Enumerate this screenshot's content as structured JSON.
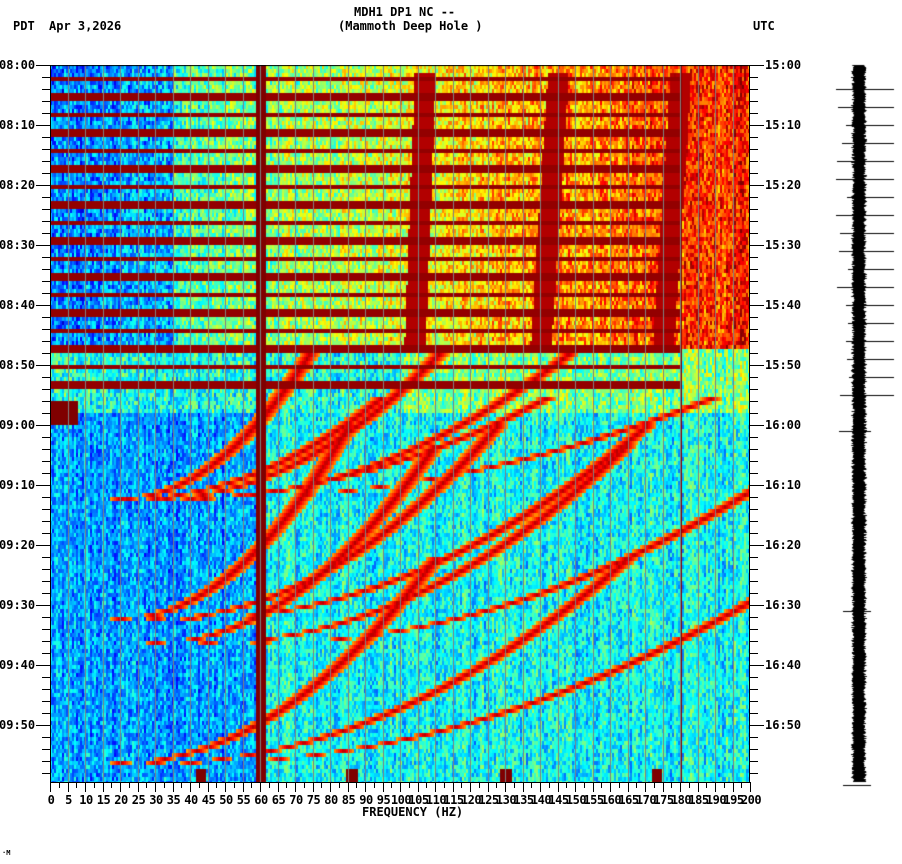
{
  "header": {
    "station_line": "MDH1 DP1 NC --",
    "station_name": "(Mammoth Deep Hole )",
    "left_tz": "PDT",
    "date": "Apr 3,2026",
    "right_tz": "UTC"
  },
  "footer_mark": "·M",
  "chart_data": {
    "type": "heatmap",
    "title": "MDH1 DP1 NC -- (Mammoth Deep Hole ) spectrogram",
    "xlabel": "FREQUENCY (HZ)",
    "ylabel_left": "PDT",
    "ylabel_right": "UTC",
    "xlim": [
      0,
      200
    ],
    "x_ticks": [
      0,
      5,
      10,
      15,
      20,
      25,
      30,
      35,
      40,
      45,
      50,
      55,
      60,
      65,
      70,
      75,
      80,
      85,
      90,
      95,
      100,
      105,
      110,
      115,
      120,
      125,
      130,
      135,
      140,
      145,
      150,
      155,
      160,
      165,
      170,
      175,
      180,
      185,
      190,
      195,
      200
    ],
    "x_tick_labels": [
      "0",
      "5",
      "10",
      "15",
      "20",
      "25",
      "30",
      "35",
      "40",
      "45",
      "50",
      "55",
      "60",
      "65",
      "70",
      "75",
      "80",
      "85",
      "90",
      "95",
      "100",
      "105",
      "110",
      "115",
      "120",
      "125",
      "130",
      "135",
      "140",
      "145",
      "150",
      "155",
      "160",
      "165",
      "170",
      "175",
      "180",
      "185",
      "190",
      "195",
      "200"
    ],
    "y_ticks_left": [
      "08:00",
      "08:10",
      "08:20",
      "08:30",
      "08:40",
      "08:50",
      "09:00",
      "09:10",
      "09:20",
      "09:30",
      "09:40",
      "09:50"
    ],
    "y_ticks_right": [
      "15:00",
      "15:10",
      "15:20",
      "15:30",
      "15:40",
      "15:50",
      "16:00",
      "16:10",
      "16:20",
      "16:30",
      "16:40",
      "16:50"
    ],
    "y_range_minutes": [
      0,
      119.5
    ],
    "colormap": "jet",
    "colors": {
      "low": "#0050ff",
      "mid": "#20ffe0",
      "high": "#ffff00",
      "max": "#8b0000",
      "grid": "#808080"
    },
    "features": {
      "persistent_lines_hz": [
        60,
        180
      ],
      "high_energy_band_minutes": [
        0,
        47
      ],
      "high_energy_band_freq_hz": [
        100,
        200
      ],
      "periodic_broadband_bursts_minutes": [
        2,
        5,
        8,
        11,
        14,
        17,
        20,
        23,
        26,
        29,
        32,
        35,
        38,
        41,
        44,
        47,
        50,
        53
      ],
      "drifting_tremor_tracks_hz": [
        {
          "start_min": 1,
          "end_min": 47,
          "f_start": 107,
          "f_end": 104
        },
        {
          "start_min": 1,
          "end_min": 47,
          "f_start": 145,
          "f_end": 140
        },
        {
          "start_min": 1,
          "end_min": 47,
          "f_start": 180,
          "f_end": 175
        }
      ],
      "frequency_sweeps": [
        {
          "start_min": 72,
          "end_min": 47,
          "f_start": 20,
          "f_end": 75
        },
        {
          "start_min": 72,
          "end_min": 55,
          "f_start": 22,
          "f_end": 95
        },
        {
          "start_min": 92,
          "end_min": 60,
          "f_start": 20,
          "f_end": 85
        },
        {
          "start_min": 96,
          "end_min": 63,
          "f_start": 30,
          "f_end": 110
        },
        {
          "start_min": 116,
          "end_min": 82,
          "f_start": 20,
          "f_end": 110
        }
      ],
      "end_spikes_hz": [
        43,
        86,
        130,
        173
      ]
    }
  },
  "seismogram": {
    "label": "seismogram trace",
    "spike_minutes": [
      2,
      5,
      8,
      11,
      14,
      17,
      20,
      23,
      26,
      29,
      32,
      35,
      38,
      41,
      44,
      47,
      50,
      53,
      59,
      89,
      118
    ]
  }
}
